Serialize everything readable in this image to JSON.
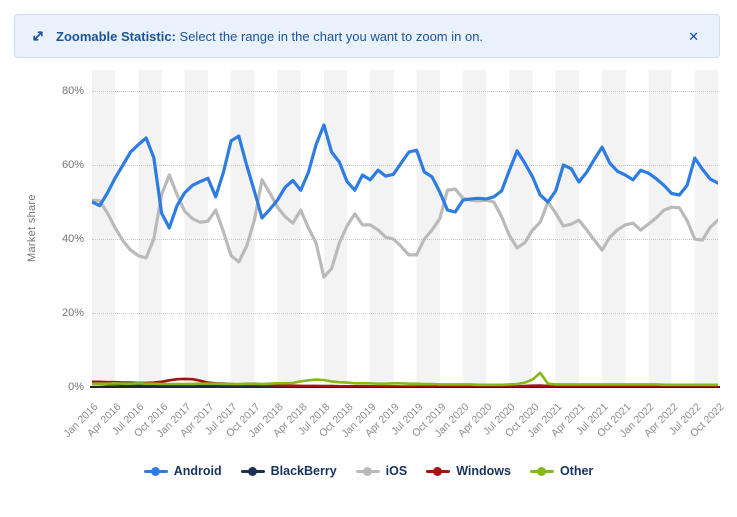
{
  "banner": {
    "icon": "zoom-expand-diagonal",
    "title_bold": "Zoomable Statistic:",
    "title_rest": " Select the range in the chart you want to zoom in on.",
    "close_glyph": "✕"
  },
  "chart_data": {
    "type": "line",
    "ylabel": "Market share",
    "y_ticks": [
      "0%",
      "20%",
      "40%",
      "60%",
      "80%"
    ],
    "ylim": [
      0,
      85.7
    ],
    "grid": "horizontal dotted every 20%, alternating quarterly background bands",
    "legend_position": "bottom center",
    "x_start": "Jan 2016",
    "x_end": "Oct 2022",
    "x_interval": "monthly",
    "x_tick_labels": [
      "Jan 2016",
      "Apr 2016",
      "Jul 2016",
      "Oct 2016",
      "Jan 2017",
      "Apr 2017",
      "Jul 2017",
      "Oct 2017",
      "Jan 2018",
      "Apr 2018",
      "Jul 2018",
      "Oct 2018",
      "Jan 2019",
      "Apr 2019",
      "Jul 2019",
      "Oct 2019",
      "Jan 2020",
      "Apr 2020",
      "Jul 2020",
      "Oct 2020",
      "Jan 2021",
      "Apr 2021",
      "Jul 2021",
      "Oct 2021",
      "Jan 2022",
      "Apr 2022",
      "Jul 2022",
      "Oct 2022"
    ],
    "series": [
      {
        "name": "Android",
        "color": "#2d7ce1",
        "values": [
          50,
          49,
          52.5,
          56.5,
          60,
          63.5,
          65.5,
          67.3,
          62,
          47,
          43,
          49,
          52.5,
          54.5,
          55.5,
          56.4,
          51.4,
          58,
          66.5,
          67.8,
          60,
          53,
          45.7,
          48,
          50.5,
          54,
          55.8,
          53.2,
          58,
          65.5,
          70.8,
          63.5,
          60.8,
          55.5,
          53.2,
          57.3,
          56,
          58.6,
          57,
          57.5,
          60.5,
          63.5,
          64,
          58.1,
          56.8,
          52.7,
          47.8,
          47.3,
          50.5,
          50.8,
          51,
          50.8,
          51.4,
          53,
          58.5,
          63.8,
          60.5,
          56.8,
          51.9,
          50,
          53,
          60,
          59,
          55.4,
          58,
          61.5,
          64.8,
          60.5,
          58.3,
          57.3,
          56,
          58.6,
          57.8,
          56.3,
          54.5,
          52.3,
          51.9,
          54.5,
          61.9,
          58.8,
          56.2,
          55.1
        ]
      },
      {
        "name": "BlackBerry",
        "color": "#1c3150",
        "values": [
          0.8,
          0.8,
          0.7,
          0.7,
          0.6,
          0.6,
          0.6,
          0.5,
          0.5,
          0.5,
          0.4,
          0.4,
          0.4,
          0.3,
          0.3,
          0.3,
          0.25,
          0.25,
          0.2,
          0.2,
          0.2,
          0.15,
          0.15,
          0.15,
          0.1,
          0.1,
          0.1,
          0.1,
          0.1,
          0.1,
          0.1,
          0.1,
          0.1,
          0.1,
          0.1,
          0.1,
          0.05,
          0.05,
          0.05,
          0.05,
          0.05,
          0.05,
          0.05,
          0.05,
          0.05,
          0.05,
          0.05,
          0.05,
          0.05,
          0.05,
          0.05,
          0.05,
          0.05,
          0.05,
          0.05,
          0.05,
          0.05,
          0.05,
          0.05,
          0.05,
          0.05,
          0.05,
          0.05,
          0.05,
          0.05,
          0.05,
          0.05,
          0.05,
          0.05,
          0.05,
          0.05,
          0.05,
          0.05,
          0.05,
          0.05,
          0.05,
          0.05,
          0.05,
          0.05,
          0.05,
          0.05,
          0.05
        ]
      },
      {
        "name": "iOS",
        "color": "#bababa",
        "values": [
          50.5,
          50.3,
          47,
          43,
          39.5,
          37,
          35.5,
          34.9,
          40,
          52,
          57.3,
          52,
          47.5,
          45.5,
          44.5,
          44.8,
          47.8,
          42,
          35.5,
          33.8,
          38,
          45,
          56,
          52.5,
          48.6,
          46,
          44.3,
          47.8,
          43,
          38.9,
          29.7,
          32,
          38.9,
          43.5,
          46.8,
          43.8,
          43.8,
          42.5,
          40.5,
          40,
          38,
          35.7,
          35.7,
          40,
          42.4,
          45.5,
          53.2,
          53.5,
          51,
          50.5,
          50.3,
          50.5,
          50,
          46,
          41,
          37.6,
          39,
          42.4,
          44.5,
          50,
          47,
          43.5,
          44,
          45.1,
          42.5,
          39.7,
          37,
          40.5,
          42.5,
          43.8,
          44.3,
          42.4,
          44,
          45.7,
          47.8,
          48.6,
          48.4,
          45,
          40,
          39.7,
          43.2,
          45.1
        ]
      },
      {
        "name": "Windows",
        "color": "#a51212",
        "values": [
          1.4,
          1.4,
          1.3,
          1.3,
          1.2,
          1.2,
          1.1,
          1.1,
          1.2,
          1.4,
          1.8,
          2.1,
          2.2,
          2.1,
          1.7,
          1.2,
          1.0,
          0.9,
          0.8,
          0.7,
          0.6,
          0.6,
          0.5,
          0.5,
          0.4,
          0.4,
          0.35,
          0.3,
          0.3,
          0.3,
          0.25,
          0.25,
          0.2,
          0.2,
          0.2,
          0.2,
          0.2,
          0.15,
          0.15,
          0.15,
          0.1,
          0.1,
          0.1,
          0.1,
          0.1,
          0.1,
          0.1,
          0.1,
          0.1,
          0.1,
          0.1,
          0.1,
          0.1,
          0.1,
          0.1,
          0.15,
          0.25,
          0.35,
          0.4,
          0.3,
          0.15,
          0.1,
          0.1,
          0.1,
          0.1,
          0.1,
          0.1,
          0.1,
          0.1,
          0.1,
          0.1,
          0.1,
          0.1,
          0.1,
          0.1,
          0.1,
          0.1,
          0.1,
          0.1,
          0.1,
          0.1,
          0.1
        ]
      },
      {
        "name": "Other",
        "color": "#86b817",
        "values": [
          0.9,
          0.9,
          0.9,
          1.0,
          0.9,
          0.9,
          1.0,
          0.9,
          0.9,
          0.8,
          0.8,
          0.8,
          0.8,
          0.8,
          0.9,
          0.9,
          0.9,
          0.8,
          0.8,
          0.8,
          0.9,
          0.9,
          0.8,
          0.9,
          1.0,
          1.0,
          1.1,
          1.5,
          1.8,
          2.0,
          1.9,
          1.5,
          1.3,
          1.2,
          1.0,
          1.0,
          1.0,
          0.9,
          0.9,
          1.0,
          1.0,
          0.9,
          0.9,
          0.8,
          0.8,
          0.7,
          0.7,
          0.7,
          0.7,
          0.7,
          0.6,
          0.6,
          0.6,
          0.6,
          0.7,
          0.8,
          1.2,
          2.0,
          3.8,
          0.9,
          0.7,
          0.7,
          0.7,
          0.7,
          0.7,
          0.7,
          0.7,
          0.7,
          0.7,
          0.7,
          0.7,
          0.7,
          0.7,
          0.7,
          0.6,
          0.6,
          0.6,
          0.6,
          0.6,
          0.6,
          0.6,
          0.6
        ]
      }
    ]
  }
}
